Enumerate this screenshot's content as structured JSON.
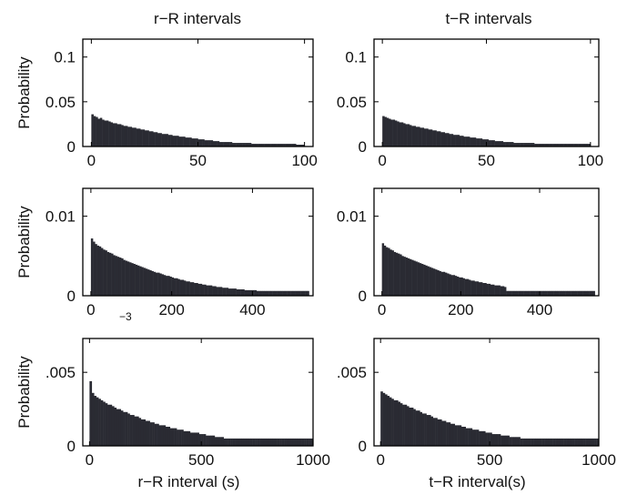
{
  "chart_data": [
    {
      "type": "bar",
      "title": "r−R intervals",
      "ylabel": "Probability",
      "xlabel": "",
      "xlim": [
        -4,
        104
      ],
      "ylim": [
        0,
        0.12
      ],
      "xticks": [
        0,
        50,
        100
      ],
      "xtick_labels": [
        "0",
        "50",
        "100"
      ],
      "yticks": [
        0,
        0.05,
        0.1
      ],
      "ytick_labels": [
        "0",
        "0.05",
        "0.1"
      ],
      "bin_start": 0,
      "bin_width": 1,
      "values": [
        0.036,
        0.034,
        0.033,
        0.031,
        0.032,
        0.03,
        0.029,
        0.029,
        0.028,
        0.027,
        0.026,
        0.026,
        0.025,
        0.025,
        0.024,
        0.023,
        0.023,
        0.022,
        0.022,
        0.021,
        0.021,
        0.02,
        0.02,
        0.019,
        0.019,
        0.018,
        0.018,
        0.017,
        0.017,
        0.016,
        0.016,
        0.015,
        0.015,
        0.014,
        0.014,
        0.014,
        0.013,
        0.013,
        0.012,
        0.012,
        0.012,
        0.011,
        0.011,
        0.011,
        0.01,
        0.01,
        0.01,
        0.009,
        0.009,
        0.009,
        0.008,
        0.008,
        0.008,
        0.007,
        0.007,
        0.007,
        0.007,
        0.006,
        0.006,
        0.006,
        0.005,
        0.005,
        0.005,
        0.005,
        0.005,
        0.005,
        0.004,
        0.004,
        0.004,
        0.004,
        0.004,
        0.004,
        0.004,
        0.004,
        0.004,
        0.003,
        0.003,
        0.003,
        0.003,
        0.003,
        0.003,
        0.003,
        0.003,
        0.003,
        0.003,
        0.003,
        0.003,
        0.003,
        0.003,
        0.003,
        0.003,
        0.003,
        0.003,
        0.003,
        0.003,
        0.003,
        0.002,
        0.002,
        0.002,
        0.002
      ],
      "bar_color": "#2a2b33",
      "grid": false
    },
    {
      "type": "bar",
      "title": "t−R intervals",
      "ylabel": "",
      "xlabel": "",
      "xlim": [
        -4,
        104
      ],
      "ylim": [
        0,
        0.12
      ],
      "xticks": [
        0,
        50,
        100
      ],
      "xtick_labels": [
        "0",
        "50",
        "100"
      ],
      "yticks": [
        0,
        0.05,
        0.1
      ],
      "ytick_labels": [
        "0",
        "0.05",
        "0.1"
      ],
      "bin_start": 0,
      "bin_width": 1,
      "values": [
        0.034,
        0.033,
        0.032,
        0.031,
        0.03,
        0.03,
        0.029,
        0.028,
        0.027,
        0.027,
        0.026,
        0.025,
        0.025,
        0.024,
        0.023,
        0.023,
        0.022,
        0.022,
        0.021,
        0.021,
        0.02,
        0.02,
        0.019,
        0.019,
        0.018,
        0.018,
        0.017,
        0.017,
        0.016,
        0.016,
        0.015,
        0.015,
        0.014,
        0.014,
        0.013,
        0.013,
        0.013,
        0.012,
        0.012,
        0.011,
        0.011,
        0.011,
        0.01,
        0.01,
        0.01,
        0.009,
        0.009,
        0.009,
        0.008,
        0.008,
        0.008,
        0.007,
        0.007,
        0.007,
        0.006,
        0.006,
        0.006,
        0.006,
        0.005,
        0.005,
        0.005,
        0.005,
        0.005,
        0.004,
        0.004,
        0.004,
        0.004,
        0.004,
        0.004,
        0.004,
        0.004,
        0.004,
        0.004,
        0.003,
        0.003,
        0.003,
        0.003,
        0.003,
        0.003,
        0.003,
        0.003,
        0.003,
        0.003,
        0.003,
        0.003,
        0.003,
        0.003,
        0.003,
        0.003,
        0.003,
        0.003,
        0.003,
        0.003,
        0.003,
        0.003,
        0.003,
        0.003,
        0.003,
        0.003,
        0.003
      ],
      "bar_color": "#2a2b33",
      "grid": false
    },
    {
      "type": "bar",
      "title": "",
      "ylabel": "Probability",
      "xlabel": "",
      "xlim": [
        -20,
        550
      ],
      "ylim": [
        0,
        0.0135
      ],
      "xticks": [
        0,
        200,
        400
      ],
      "xtick_labels": [
        "0",
        "200",
        "400"
      ],
      "yticks": [
        0,
        0.01
      ],
      "ytick_labels": [
        "0",
        "0.01"
      ],
      "bin_start": 0,
      "bin_width": 5,
      "values": [
        0.0072,
        0.0068,
        0.0065,
        0.0063,
        0.0062,
        0.006,
        0.0058,
        0.0057,
        0.0055,
        0.0054,
        0.0053,
        0.0051,
        0.005,
        0.0049,
        0.0048,
        0.0047,
        0.0045,
        0.0044,
        0.0043,
        0.0042,
        0.0041,
        0.004,
        0.0039,
        0.0038,
        0.0037,
        0.0036,
        0.0035,
        0.0034,
        0.0033,
        0.0032,
        0.0031,
        0.003,
        0.0029,
        0.0029,
        0.0028,
        0.0027,
        0.0026,
        0.0025,
        0.0025,
        0.0024,
        0.0023,
        0.0022,
        0.0022,
        0.0021,
        0.002,
        0.002,
        0.0019,
        0.0018,
        0.0018,
        0.0017,
        0.0017,
        0.0016,
        0.0016,
        0.0015,
        0.0015,
        0.0014,
        0.0014,
        0.0013,
        0.0013,
        0.0013,
        0.0012,
        0.0012,
        0.0011,
        0.0011,
        0.0011,
        0.001,
        0.001,
        0.001,
        0.0009,
        0.0009,
        0.0009,
        0.0009,
        0.0008,
        0.0008,
        0.0008,
        0.0008,
        0.0007,
        0.0007,
        0.0007,
        0.0007,
        0.0007,
        0.0007,
        0.0006,
        0.0006,
        0.0006,
        0.0006,
        0.0006,
        0.0006,
        0.0006,
        0.0006,
        0.0006,
        0.0006,
        0.0006,
        0.0006,
        0.0006,
        0.0006,
        0.0006,
        0.0006,
        0.0006,
        0.0006,
        0.0006,
        0.0006,
        0.0006,
        0.0006,
        0.0006,
        0.0006,
        0.0006,
        0.0006
      ],
      "bar_color": "#2a2b33",
      "grid": false
    },
    {
      "type": "bar",
      "title": "",
      "ylabel": "",
      "xlabel": "",
      "xlim": [
        -20,
        550
      ],
      "ylim": [
        0,
        0.0135
      ],
      "xticks": [
        0,
        200,
        400
      ],
      "xtick_labels": [
        "0",
        "200",
        "400"
      ],
      "yticks": [
        0,
        0.01
      ],
      "ytick_labels": [
        "0",
        "0.01"
      ],
      "bin_start": 0,
      "bin_width": 5,
      "values": [
        0.0066,
        0.0063,
        0.0061,
        0.006,
        0.0058,
        0.0057,
        0.0055,
        0.0054,
        0.0053,
        0.0052,
        0.005,
        0.0049,
        0.0048,
        0.0047,
        0.0046,
        0.0045,
        0.0044,
        0.0043,
        0.0042,
        0.0041,
        0.004,
        0.0039,
        0.0038,
        0.0037,
        0.0036,
        0.0035,
        0.0034,
        0.0033,
        0.0032,
        0.0031,
        0.003,
        0.003,
        0.0029,
        0.0028,
        0.0027,
        0.0026,
        0.0026,
        0.0025,
        0.0024,
        0.0023,
        0.0023,
        0.0022,
        0.0021,
        0.0021,
        0.002,
        0.0019,
        0.0019,
        0.0018,
        0.0018,
        0.0017,
        0.0017,
        0.0016,
        0.0016,
        0.0015,
        0.0015,
        0.0014,
        0.0014,
        0.0013,
        0.0013,
        0.0013,
        0.0012,
        0.0012,
        0.0011,
        0.0006,
        0.0006,
        0.0006,
        0.0006,
        0.0006,
        0.0006,
        0.0006,
        0.0006,
        0.0006,
        0.0006,
        0.0006,
        0.0006,
        0.0006,
        0.0006,
        0.0006,
        0.0006,
        0.0006,
        0.0006,
        0.0006,
        0.0006,
        0.0006,
        0.0006,
        0.0006,
        0.0006,
        0.0006,
        0.0006,
        0.0006,
        0.0006,
        0.0006,
        0.0006,
        0.0006,
        0.0006,
        0.0006,
        0.0006,
        0.0006,
        0.0006,
        0.0006,
        0.0006,
        0.0006,
        0.0006,
        0.0006,
        0.0006,
        0.0006,
        0.0006,
        0.0006
      ],
      "bar_color": "#2a2b33",
      "grid": false
    },
    {
      "type": "bar",
      "title": "",
      "ylabel": "Probability",
      "xlabel": "r−R interval (s)",
      "xlim": [
        -30,
        1000
      ],
      "ylim": [
        0,
        0.0073
      ],
      "xticks": [
        0,
        500,
        1000
      ],
      "xtick_labels": [
        "0",
        "500",
        "1000"
      ],
      "yticks": [
        0,
        0.005
      ],
      "ytick_labels": [
        "0",
        ".005"
      ],
      "bin_start": 0,
      "bin_width": 10,
      "values": [
        0.0044,
        0.0036,
        0.0034,
        0.0033,
        0.0032,
        0.0031,
        0.003,
        0.0029,
        0.0028,
        0.0028,
        0.0027,
        0.0026,
        0.0025,
        0.0025,
        0.0024,
        0.0023,
        0.0023,
        0.0022,
        0.0021,
        0.0021,
        0.002,
        0.002,
        0.0019,
        0.0018,
        0.0018,
        0.0017,
        0.0017,
        0.0016,
        0.0016,
        0.0015,
        0.0015,
        0.0014,
        0.0014,
        0.0014,
        0.0013,
        0.0013,
        0.0012,
        0.0012,
        0.0012,
        0.0011,
        0.0011,
        0.0011,
        0.001,
        0.001,
        0.001,
        0.0009,
        0.0009,
        0.0009,
        0.0009,
        0.0008,
        0.0008,
        0.0008,
        0.0007,
        0.0007,
        0.0007,
        0.0007,
        0.0006,
        0.0006,
        0.0006,
        0.0006,
        0.0005,
        0.0005,
        0.0005,
        0.0005,
        0.0005,
        0.0005,
        0.0005,
        0.0005,
        0.0005,
        0.0005,
        0.0005,
        0.0005,
        0.0005,
        0.0005,
        0.0005,
        0.0005,
        0.0005,
        0.0005,
        0.0005,
        0.0005,
        0.0005,
        0.0005,
        0.0005,
        0.0005,
        0.0005,
        0.0005,
        0.0005,
        0.0005,
        0.0005,
        0.0005,
        0.0005,
        0.0005,
        0.0005,
        0.0005,
        0.0005,
        0.0005,
        0.0005,
        0.0005,
        0.0005,
        0.0005
      ],
      "bar_color": "#2a2b33",
      "grid": false
    },
    {
      "type": "bar",
      "title": "",
      "ylabel": "",
      "xlabel": "t−R interval(s)",
      "xlim": [
        -30,
        1000
      ],
      "ylim": [
        0,
        0.0073
      ],
      "xticks": [
        0,
        500,
        1000
      ],
      "xtick_labels": [
        "0",
        "500",
        "1000"
      ],
      "yticks": [
        0,
        0.005
      ],
      "ytick_labels": [
        "0",
        ".005"
      ],
      "bin_start": 0,
      "bin_width": 10,
      "values": [
        0.0037,
        0.0036,
        0.0035,
        0.0034,
        0.0033,
        0.0032,
        0.0031,
        0.0031,
        0.003,
        0.0029,
        0.0028,
        0.0028,
        0.0027,
        0.0026,
        0.0026,
        0.0025,
        0.0024,
        0.0024,
        0.0023,
        0.0022,
        0.0022,
        0.0021,
        0.0021,
        0.002,
        0.0019,
        0.0019,
        0.0018,
        0.0018,
        0.0017,
        0.0017,
        0.0016,
        0.0016,
        0.0015,
        0.0015,
        0.0014,
        0.0014,
        0.0014,
        0.0013,
        0.0013,
        0.0012,
        0.0012,
        0.0012,
        0.0011,
        0.0011,
        0.0011,
        0.001,
        0.001,
        0.001,
        0.0009,
        0.0009,
        0.0009,
        0.0008,
        0.0008,
        0.0008,
        0.0008,
        0.0007,
        0.0007,
        0.0007,
        0.0007,
        0.0006,
        0.0006,
        0.0006,
        0.0006,
        0.0006,
        0.0005,
        0.0005,
        0.0005,
        0.0005,
        0.0005,
        0.0005,
        0.0005,
        0.0005,
        0.0005,
        0.0005,
        0.0005,
        0.0005,
        0.0005,
        0.0005,
        0.0005,
        0.0005,
        0.0005,
        0.0005,
        0.0005,
        0.0005,
        0.0005,
        0.0005,
        0.0005,
        0.0005,
        0.0005,
        0.0005,
        0.0005,
        0.0005,
        0.0005,
        0.0005,
        0.0005,
        0.0005,
        0.0005,
        0.0005,
        0.0005,
        0.0005
      ],
      "bar_color": "#2a2b33",
      "grid": false
    }
  ],
  "annotations": {
    "exponent_label": "−3"
  }
}
